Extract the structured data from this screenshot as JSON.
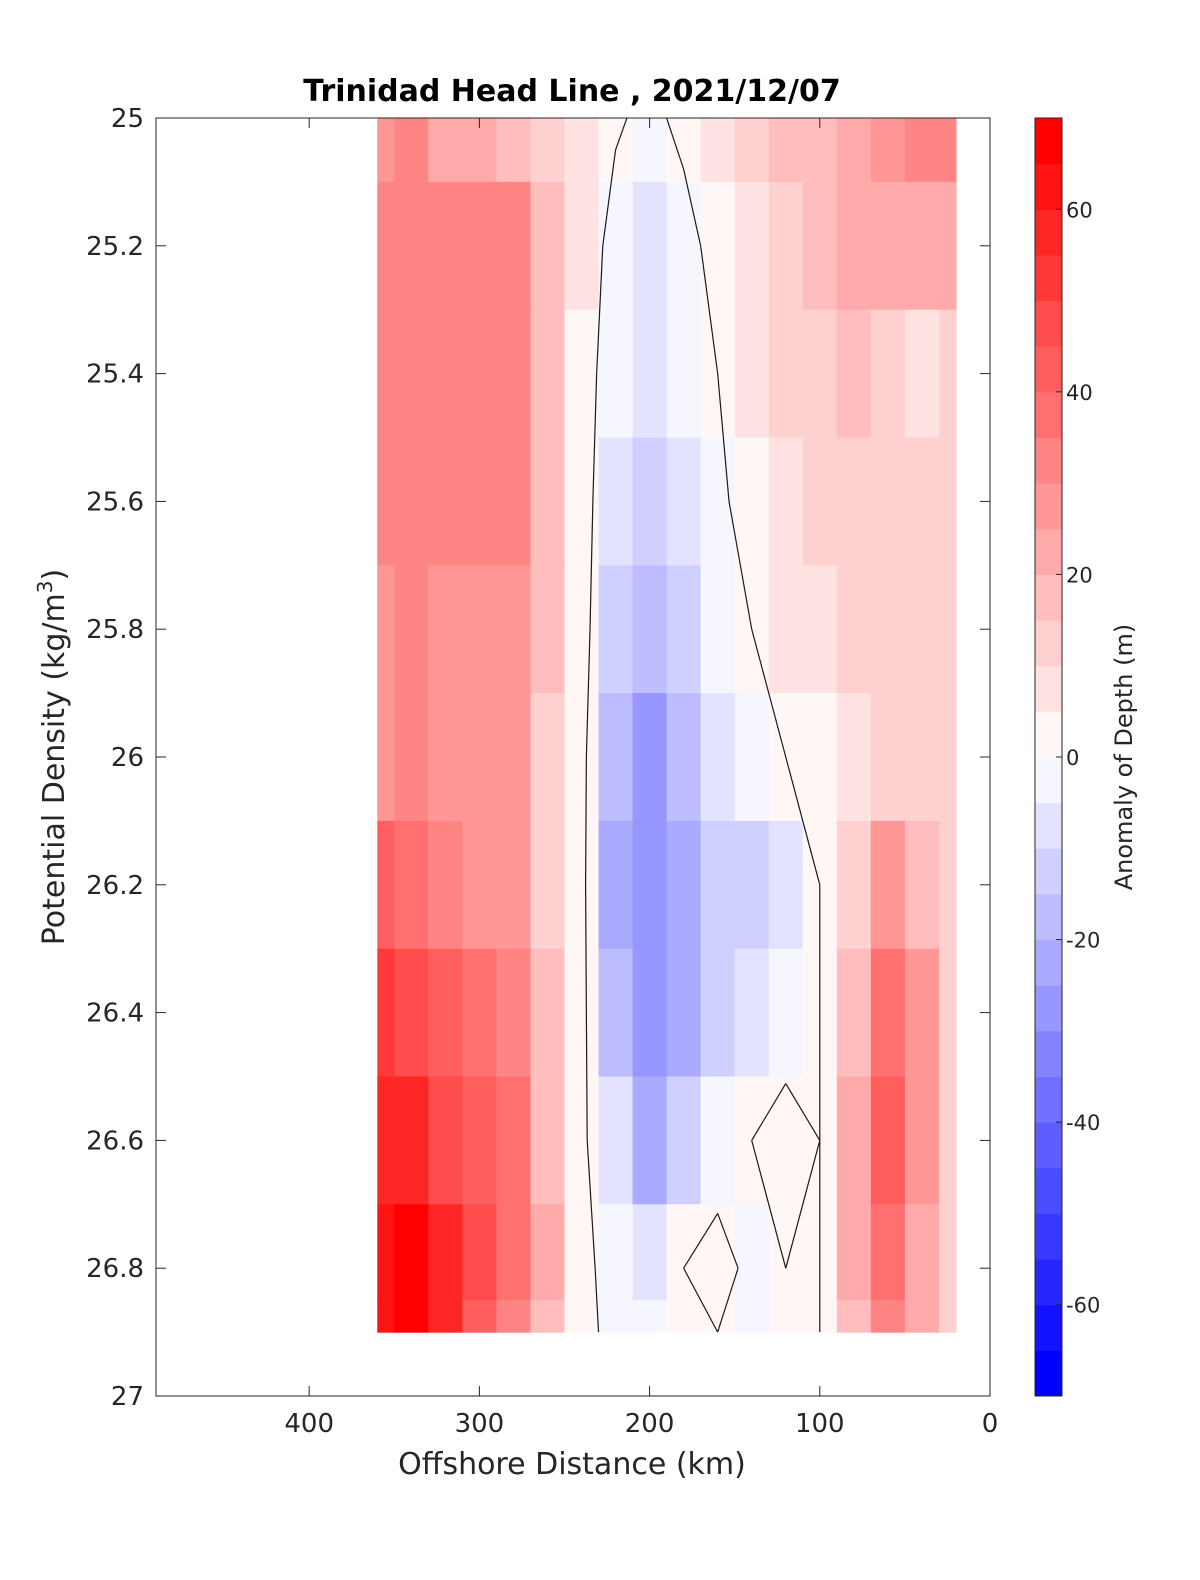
{
  "chart_data": {
    "type": "heatmap",
    "title": "Trinidad Head Line , 2021/12/07",
    "xlabel": "Offshore Distance (km)",
    "ylabel_main": "Potential Density (kg/m",
    "ylabel_sup": "3",
    "ylabel_close": ")",
    "xlim": [
      490,
      0
    ],
    "ylim": [
      25,
      27
    ],
    "y_reversed": true,
    "x_ticks": [
      400,
      300,
      200,
      100,
      0
    ],
    "y_ticks": [
      25,
      25.2,
      25.4,
      25.6,
      25.8,
      26,
      26.2,
      26.4,
      26.6,
      26.8,
      27
    ],
    "y_tick_labels": [
      "25",
      "25.2",
      "25.4",
      "25.6",
      "25.8",
      "26",
      "26.2",
      "26.4",
      "26.6",
      "26.8",
      "27"
    ],
    "colorbar": {
      "label": "Anomaly of Depth (m)",
      "min": -70,
      "max": 70,
      "step": 5,
      "ticks": [
        60,
        40,
        20,
        0,
        -20,
        -40,
        -60
      ],
      "colors_note": "blue-white-red diverging",
      "neg_color": "#0000ff",
      "pos_color": "#ff0000",
      "mid_color": "#ffffff"
    },
    "grid": false,
    "x": [
      360,
      340,
      320,
      300,
      280,
      260,
      240,
      220,
      200,
      180,
      160,
      140,
      120,
      100,
      80,
      60,
      40,
      20
    ],
    "y": [
      25.0,
      25.2,
      25.4,
      25.6,
      25.8,
      26.0,
      26.2,
      26.4,
      26.6,
      26.8,
      26.9
    ],
    "z": [
      [
        25,
        30,
        24,
        22,
        15,
        10,
        5,
        1,
        -2,
        2,
        8,
        12,
        15,
        18,
        24,
        28,
        30,
        32
      ],
      [
        30,
        34,
        30,
        32,
        30,
        15,
        5,
        -3,
        -8,
        -3,
        3,
        8,
        12,
        15,
        20,
        22,
        20,
        20
      ],
      [
        30,
        34,
        30,
        34,
        30,
        15,
        4,
        -5,
        -10,
        -5,
        0,
        8,
        12,
        14,
        15,
        12,
        8,
        10
      ],
      [
        30,
        32,
        30,
        32,
        30,
        15,
        4,
        -8,
        -12,
        -8,
        -2,
        4,
        8,
        12,
        12,
        10,
        10,
        10
      ],
      [
        28,
        30,
        28,
        28,
        26,
        15,
        4,
        -12,
        -18,
        -12,
        -5,
        0,
        5,
        8,
        10,
        12,
        14,
        14
      ],
      [
        28,
        30,
        26,
        26,
        26,
        14,
        3,
        -18,
        -26,
        -18,
        -8,
        -4,
        0,
        3,
        8,
        12,
        12,
        12
      ],
      [
        40,
        35,
        30,
        28,
        26,
        14,
        3,
        -22,
        -28,
        -22,
        -12,
        -14,
        -8,
        0,
        12,
        26,
        18,
        10
      ],
      [
        52,
        48,
        40,
        35,
        30,
        16,
        3,
        -18,
        -28,
        -22,
        -12,
        -10,
        -5,
        0,
        18,
        36,
        25,
        10
      ],
      [
        58,
        58,
        48,
        40,
        35,
        18,
        2,
        -10,
        -22,
        -14,
        -4,
        0,
        4,
        0,
        22,
        42,
        26,
        10
      ],
      [
        62,
        70,
        56,
        45,
        36,
        20,
        2,
        -3,
        -10,
        0,
        3,
        -2,
        0,
        0,
        20,
        38,
        24,
        10
      ],
      [
        60,
        65,
        55,
        42,
        33,
        18,
        2,
        -2,
        -5,
        0,
        0,
        -4,
        0,
        0,
        18,
        34,
        22,
        10
      ]
    ],
    "zero_contour_note": "black 0-level contour lines"
  }
}
